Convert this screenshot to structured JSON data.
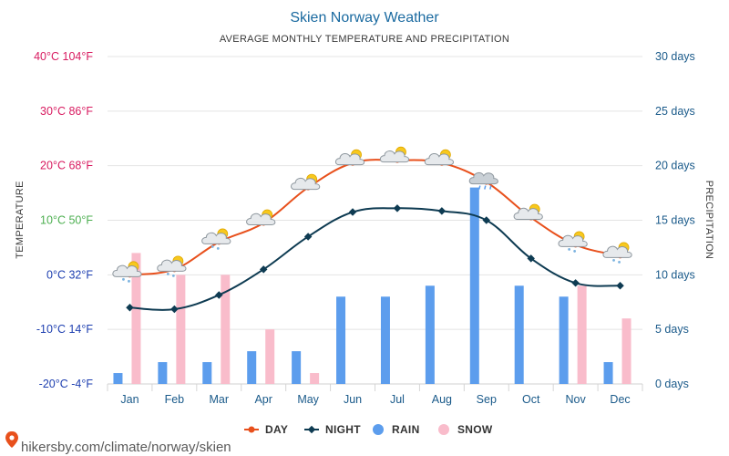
{
  "chart_data": {
    "type": "bar+line",
    "title": "Skien Norway Weather",
    "subtitle": "AVERAGE MONTHLY TEMPERATURE AND PRECIPITATION",
    "categories": [
      "Jan",
      "Feb",
      "Mar",
      "Apr",
      "May",
      "Jun",
      "Jul",
      "Aug",
      "Sep",
      "Oct",
      "Nov",
      "Dec"
    ],
    "y_left": {
      "label": "TEMPERATURE",
      "ylim": [
        -20,
        40
      ],
      "ticks": [
        {
          "value": 40,
          "label": "40°C 104°F",
          "color": "#d81b60"
        },
        {
          "value": 30,
          "label": "30°C 86°F",
          "color": "#d81b60"
        },
        {
          "value": 20,
          "label": "20°C 68°F",
          "color": "#d81b60"
        },
        {
          "value": 10,
          "label": "10°C 50°F",
          "color": "#4caf50"
        },
        {
          "value": 0,
          "label": "0°C 32°F",
          "color": "#1e3fb0"
        },
        {
          "value": -10,
          "label": "-10°C 14°F",
          "color": "#1e3fb0"
        },
        {
          "value": -20,
          "label": "-20°C -4°F",
          "color": "#1e3fb0"
        }
      ]
    },
    "y_right": {
      "label": "PRECIPITATION",
      "ylim": [
        0,
        30
      ],
      "ticks": [
        {
          "value": 30,
          "label": "30 days"
        },
        {
          "value": 25,
          "label": "25 days"
        },
        {
          "value": 20,
          "label": "20 days"
        },
        {
          "value": 15,
          "label": "15 days"
        },
        {
          "value": 10,
          "label": "10 days"
        },
        {
          "value": 5,
          "label": "5 days"
        },
        {
          "value": 0,
          "label": "0 days"
        }
      ]
    },
    "series": [
      {
        "name": "DAY",
        "kind": "line",
        "axis": "left",
        "color": "#e8501c",
        "values": [
          0,
          1,
          6,
          9.5,
          16,
          20.5,
          21,
          20.5,
          17,
          10.5,
          5.5,
          3.5
        ]
      },
      {
        "name": "NIGHT",
        "kind": "line",
        "axis": "left",
        "color": "#0e3b52",
        "values": [
          -6,
          -6.3,
          -3.7,
          1,
          7,
          11.5,
          12.2,
          11.7,
          10,
          3,
          -1.5,
          -2
        ]
      },
      {
        "name": "RAIN",
        "kind": "bar",
        "axis": "right",
        "color": "#5c9ded",
        "values": [
          1,
          2,
          2,
          3,
          3,
          8,
          8,
          9,
          18,
          9,
          8,
          2
        ]
      },
      {
        "name": "SNOW",
        "kind": "bar",
        "axis": "right",
        "color": "#f9bccb",
        "values": [
          12,
          10,
          10,
          5,
          1,
          0,
          0,
          0,
          0,
          0,
          9,
          6
        ]
      }
    ],
    "weather_icons": [
      "cloud-sun-snow",
      "cloud-sun-snow",
      "cloud-sun-snow",
      "cloud-sun",
      "cloud-sun",
      "cloud-sun",
      "cloud-sun",
      "cloud-sun",
      "cloud-rain",
      "cloud-sun",
      "cloud-sun-snow",
      "cloud-sun-snow"
    ],
    "grid": true,
    "legend_position": "bottom-center"
  },
  "legend": [
    {
      "label": "DAY",
      "symbol": "line-dot",
      "color": "#e8501c"
    },
    {
      "label": "NIGHT",
      "symbol": "line-diamond",
      "color": "#0e3b52"
    },
    {
      "label": "RAIN",
      "symbol": "circle",
      "color": "#5c9ded"
    },
    {
      "label": "SNOW",
      "symbol": "circle",
      "color": "#f9bccb"
    }
  ],
  "source": {
    "text": "hikersby.com/climate/norway/skien"
  }
}
